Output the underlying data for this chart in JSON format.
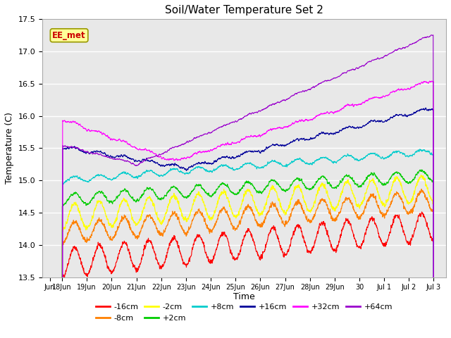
{
  "title": "Soil/Water Temperature Set 2",
  "xlabel": "Time",
  "ylabel": "Temperature (C)",
  "ylim": [
    13.5,
    17.5
  ],
  "series": [
    {
      "label": "-16cm",
      "color": "#ff0000"
    },
    {
      "label": "-8cm",
      "color": "#ff8000"
    },
    {
      "label": "-2cm",
      "color": "#ffff00"
    },
    {
      "label": "+2cm",
      "color": "#00cc00"
    },
    {
      "label": "+8cm",
      "color": "#00cccc"
    },
    {
      "label": "+16cm",
      "color": "#000099"
    },
    {
      "label": "+32cm",
      "color": "#ff00ff"
    },
    {
      "label": "+64cm",
      "color": "#9900cc"
    }
  ],
  "xtick_labels": [
    "Jun",
    "18Jun",
    "19Jun",
    "20Jun",
    "21Jun",
    "22Jun",
    "23Jun",
    "24Jun",
    "25Jun",
    "26Jun",
    "27Jun",
    "28Jun",
    "29Jun",
    "30",
    "Jul 1",
    "Jul 2",
    "Jul 3"
  ],
  "ytick_labels": [
    "13.5",
    "14.0",
    "14.5",
    "15.0",
    "15.5",
    "16.0",
    "16.5",
    "17.0",
    "17.5"
  ],
  "ytick_positions": [
    13.5,
    14.0,
    14.5,
    15.0,
    15.5,
    16.0,
    16.5,
    17.0,
    17.5
  ],
  "background_color": "#e8e8e8",
  "annotation_text": "EE_met",
  "annotation_color": "#cc0000",
  "annotation_bg": "#ffff99",
  "annotation_border": "#999900"
}
